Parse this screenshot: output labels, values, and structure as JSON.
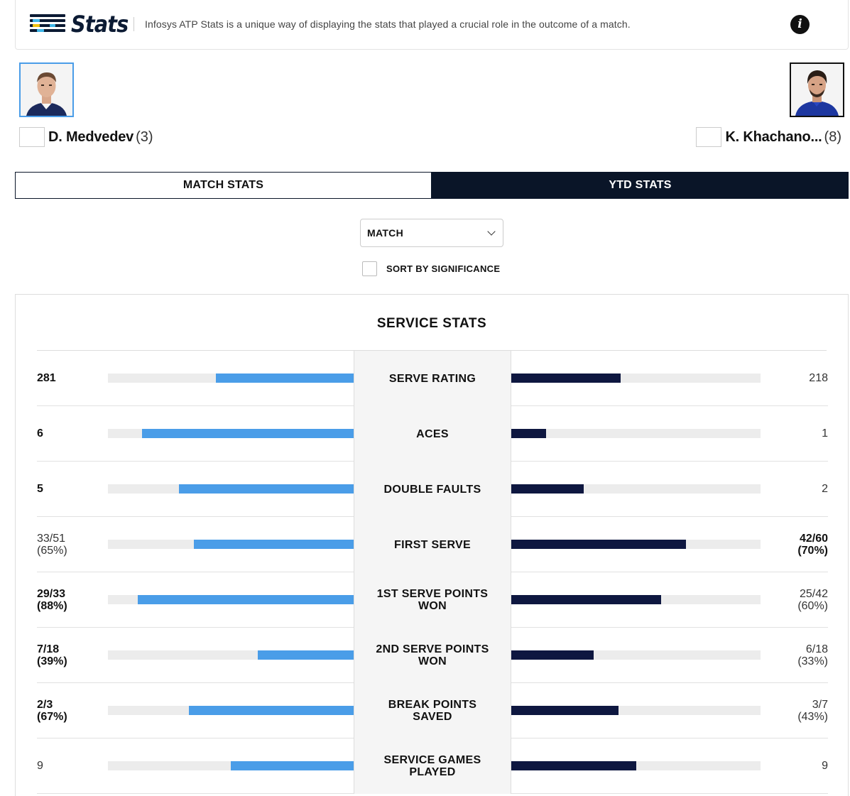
{
  "header": {
    "logo_text": "Stats",
    "description": "Infosys ATP Stats is a unique way of displaying the stats that played a crucial role in the outcome of a match."
  },
  "players": {
    "left": {
      "name": "D. Medvedev",
      "seed": "(3)"
    },
    "right": {
      "name": "K. Khachano...",
      "seed": "(8)"
    }
  },
  "tabs": [
    {
      "label": "MATCH STATS",
      "active": false
    },
    {
      "label": "YTD STATS",
      "active": true
    }
  ],
  "filter": {
    "selected": "MATCH"
  },
  "sort": {
    "label": "SORT BY SIGNIFICANCE",
    "checked": false
  },
  "section": {
    "title": "SERVICE STATS"
  },
  "colors": {
    "left_bar": "#4a9de8",
    "right_bar": "#0e1740",
    "track": "#ececec"
  },
  "stats": [
    {
      "label": "SERVE RATING",
      "left": [
        "281"
      ],
      "right": [
        "218"
      ],
      "left_bold": true,
      "right_bold": false,
      "left_fill": 0.56,
      "right_fill": 0.44
    },
    {
      "label": "ACES",
      "left": [
        "6"
      ],
      "right": [
        "1"
      ],
      "left_bold": true,
      "right_bold": false,
      "left_fill": 0.86,
      "right_fill": 0.14
    },
    {
      "label": "DOUBLE FAULTS",
      "left": [
        "5"
      ],
      "right": [
        "2"
      ],
      "left_bold": true,
      "right_bold": false,
      "left_fill": 0.71,
      "right_fill": 0.29
    },
    {
      "label": "FIRST SERVE",
      "left": [
        "33/51",
        "(65%)"
      ],
      "right": [
        "42/60",
        "(70%)"
      ],
      "left_bold": false,
      "right_bold": true,
      "left_fill": 0.65,
      "right_fill": 0.7
    },
    {
      "label": "1ST SERVE POINTS WON",
      "left": [
        "29/33",
        "(88%)"
      ],
      "right": [
        "25/42",
        "(60%)"
      ],
      "left_bold": true,
      "right_bold": false,
      "left_fill": 0.88,
      "right_fill": 0.6
    },
    {
      "label": "2ND SERVE POINTS WON",
      "left": [
        "7/18",
        "(39%)"
      ],
      "right": [
        "6/18",
        "(33%)"
      ],
      "left_bold": true,
      "right_bold": false,
      "left_fill": 0.39,
      "right_fill": 0.33
    },
    {
      "label": "BREAK POINTS SAVED",
      "left": [
        "2/3",
        "(67%)"
      ],
      "right": [
        "3/7",
        "(43%)"
      ],
      "left_bold": true,
      "right_bold": false,
      "left_fill": 0.67,
      "right_fill": 0.43
    },
    {
      "label": "SERVICE GAMES PLAYED",
      "left": [
        "9"
      ],
      "right": [
        "9"
      ],
      "left_bold": false,
      "right_bold": false,
      "left_fill": 0.5,
      "right_fill": 0.5
    }
  ]
}
